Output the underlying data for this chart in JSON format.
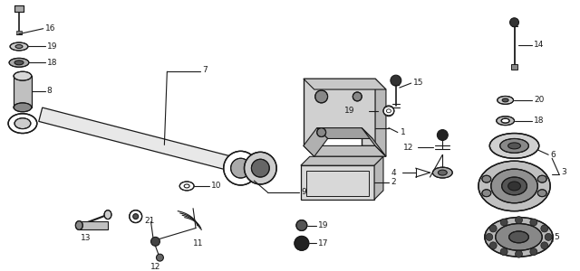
{
  "bg_color": "#ffffff",
  "line_color": "#1a1a1a",
  "fig_width": 6.4,
  "fig_height": 3.0,
  "dpi": 100
}
